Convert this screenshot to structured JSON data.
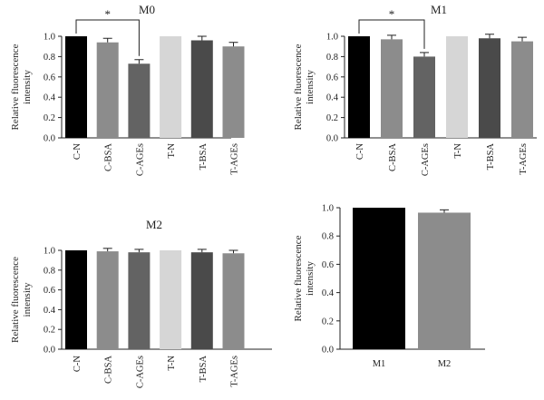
{
  "chart_data": [
    {
      "type": "bar",
      "title": "M0",
      "ylabel": "Relative fluorescence intensity",
      "categories": [
        "C-N",
        "C-BSA",
        "C-AGEs",
        "T-N",
        "T-BSA",
        "T-AGEs"
      ],
      "values": [
        1.0,
        0.94,
        0.73,
        1.0,
        0.96,
        0.9
      ],
      "errors": [
        0.0,
        0.04,
        0.04,
        0.0,
        0.04,
        0.04
      ],
      "colors": [
        "#000000",
        "#8c8c8c",
        "#636363",
        "#d6d6d6",
        "#4a4a4a",
        "#8c8c8c"
      ],
      "ylim": [
        0,
        1.0
      ],
      "yticks": [
        "0.0",
        "0.2",
        "0.4",
        "0.6",
        "0.8",
        "1.0"
      ],
      "significance": {
        "from": 0,
        "to": 2,
        "label": "*"
      }
    },
    {
      "type": "bar",
      "title": "M1",
      "ylabel": "Relative fluorescence intensity",
      "categories": [
        "C-N",
        "C-BSA",
        "C-AGEs",
        "T-N",
        "T-BSA",
        "T-AGEs"
      ],
      "values": [
        1.0,
        0.97,
        0.8,
        1.0,
        0.98,
        0.95
      ],
      "errors": [
        0.0,
        0.04,
        0.04,
        0.0,
        0.04,
        0.04
      ],
      "colors": [
        "#000000",
        "#8c8c8c",
        "#636363",
        "#d6d6d6",
        "#4a4a4a",
        "#8c8c8c"
      ],
      "ylim": [
        0,
        1.0
      ],
      "yticks": [
        "0.0",
        "0.2",
        "0.4",
        "0.6",
        "0.8",
        "1.0"
      ],
      "significance": {
        "from": 0,
        "to": 2,
        "label": "*"
      }
    },
    {
      "type": "bar",
      "title": "M2",
      "ylabel": "Relative fluorescence intensity",
      "categories": [
        "C-N",
        "C-BSA",
        "C-AGEs",
        "T-N",
        "T-BSA",
        "T-AGEs"
      ],
      "values": [
        1.0,
        0.99,
        0.98,
        1.0,
        0.98,
        0.97
      ],
      "errors": [
        0.0,
        0.03,
        0.03,
        0.0,
        0.03,
        0.03
      ],
      "colors": [
        "#000000",
        "#8c8c8c",
        "#636363",
        "#d6d6d6",
        "#4a4a4a",
        "#8c8c8c"
      ],
      "ylim": [
        0,
        1.0
      ],
      "yticks": [
        "0.0",
        "0.2",
        "0.4",
        "0.6",
        "0.8",
        "1.0"
      ]
    },
    {
      "type": "bar",
      "title": "",
      "ylabel": "Relative fluorescence intensity",
      "categories": [
        "M1",
        "M2"
      ],
      "values": [
        1.0,
        0.965
      ],
      "errors": [
        0.0,
        0.02
      ],
      "colors": [
        "#000000",
        "#8c8c8c"
      ],
      "ylim": [
        0,
        1.0
      ],
      "yticks": [
        "0.0",
        "0.2",
        "0.4",
        "0.6",
        "0.8",
        "1.0"
      ]
    }
  ]
}
